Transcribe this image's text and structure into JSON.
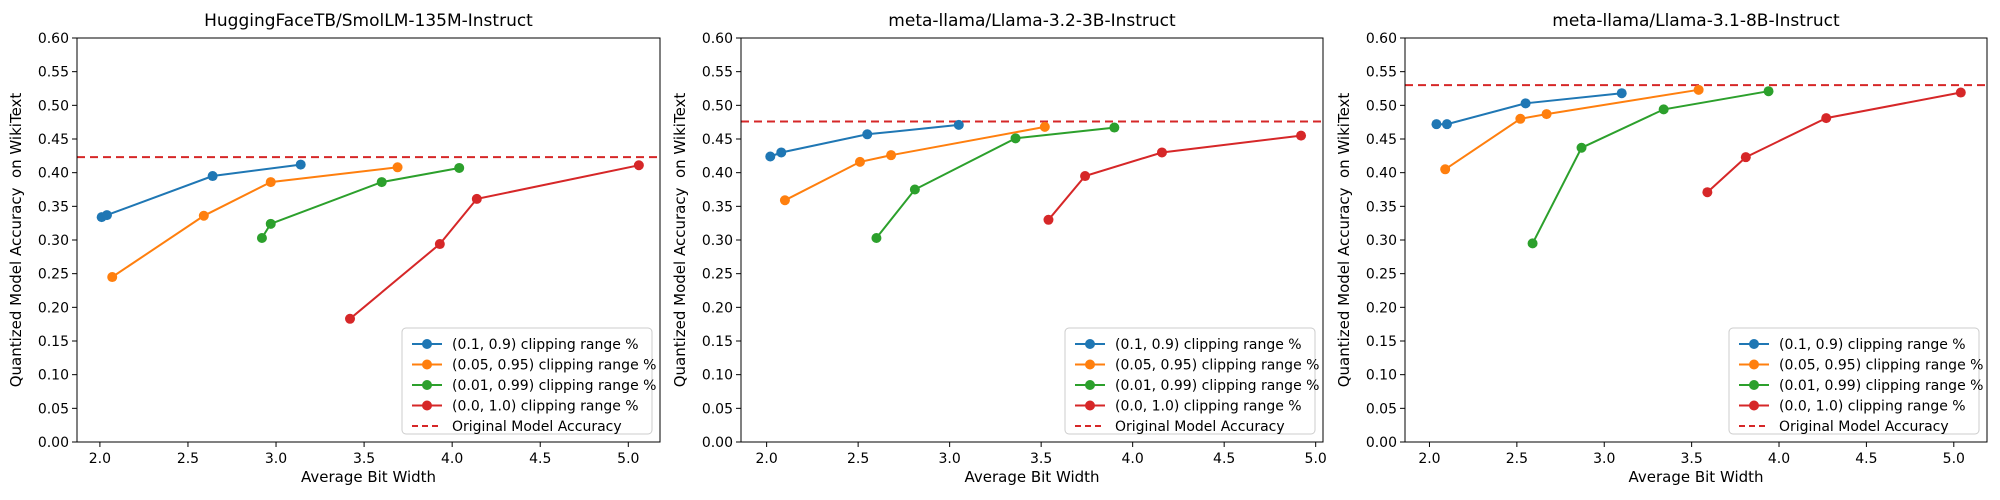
{
  "chart_data": [
    {
      "type": "line",
      "title": "HuggingFaceTB/SmolLM-135M-Instruct",
      "xlabel": "Average Bit Width",
      "ylabel": "Quantized Model Accuracy  on WikiText",
      "xlim": [
        1.87,
        5.18
      ],
      "ylim": [
        0.0,
        0.6
      ],
      "xticks": [
        "2.0",
        "2.5",
        "3.0",
        "3.5",
        "4.0",
        "4.5",
        "5.0"
      ],
      "yticks": [
        "0.00",
        "0.05",
        "0.10",
        "0.15",
        "0.20",
        "0.25",
        "0.30",
        "0.35",
        "0.40",
        "0.45",
        "0.50",
        "0.55",
        "0.60"
      ],
      "legend_position": "lower-right",
      "reference": {
        "name": "Original Model Accuracy",
        "value": 0.423,
        "color": "#d62728"
      },
      "series": [
        {
          "name": "(0.1, 0.9) clipping range %",
          "color": "#1f77b4",
          "x": [
            2.01,
            2.04,
            2.64,
            3.14
          ],
          "y": [
            0.334,
            0.337,
            0.395,
            0.412
          ]
        },
        {
          "name": "(0.05, 0.95) clipping range %",
          "color": "#ff7f0e",
          "x": [
            2.07,
            2.59,
            2.97,
            3.69
          ],
          "y": [
            0.245,
            0.336,
            0.386,
            0.408
          ]
        },
        {
          "name": "(0.01, 0.99) clipping range %",
          "color": "#2ca02c",
          "x": [
            2.92,
            2.97,
            3.6,
            4.04
          ],
          "y": [
            0.303,
            0.324,
            0.386,
            0.407
          ]
        },
        {
          "name": "(0.0, 1.0) clipping range %",
          "color": "#d62728",
          "x": [
            3.42,
            3.93,
            4.14,
            5.06
          ],
          "y": [
            0.183,
            0.294,
            0.361,
            0.411
          ]
        }
      ]
    },
    {
      "type": "line",
      "title": "meta-llama/Llama-3.2-3B-Instruct",
      "xlabel": "Average Bit Width",
      "ylabel": "Quantized Model Accuracy  on WikiText",
      "xlim": [
        1.86,
        5.04
      ],
      "ylim": [
        0.0,
        0.6
      ],
      "xticks": [
        "2.0",
        "2.5",
        "3.0",
        "3.5",
        "4.0",
        "4.5",
        "5.0"
      ],
      "yticks": [
        "0.00",
        "0.05",
        "0.10",
        "0.15",
        "0.20",
        "0.25",
        "0.30",
        "0.35",
        "0.40",
        "0.45",
        "0.50",
        "0.55",
        "0.60"
      ],
      "legend_position": "lower-right",
      "reference": {
        "name": "Original Model Accuracy",
        "value": 0.476,
        "color": "#d62728"
      },
      "series": [
        {
          "name": "(0.1, 0.9) clipping range %",
          "color": "#1f77b4",
          "x": [
            2.02,
            2.08,
            2.55,
            3.05
          ],
          "y": [
            0.424,
            0.43,
            0.457,
            0.471
          ]
        },
        {
          "name": "(0.05, 0.95) clipping range %",
          "color": "#ff7f0e",
          "x": [
            2.1,
            2.51,
            2.68,
            3.52
          ],
          "y": [
            0.359,
            0.416,
            0.426,
            0.468
          ]
        },
        {
          "name": "(0.01, 0.99) clipping range %",
          "color": "#2ca02c",
          "x": [
            2.6,
            2.81,
            3.36,
            3.9
          ],
          "y": [
            0.303,
            0.375,
            0.451,
            0.467
          ]
        },
        {
          "name": "(0.0, 1.0) clipping range %",
          "color": "#d62728",
          "x": [
            3.54,
            3.74,
            4.16,
            4.92
          ],
          "y": [
            0.33,
            0.395,
            0.43,
            0.455
          ]
        }
      ]
    },
    {
      "type": "line",
      "title": "meta-llama/Llama-3.1-8B-Instruct",
      "xlabel": "Average Bit Width",
      "ylabel": "Quantized Model Accuracy  on WikiText",
      "xlim": [
        1.86,
        5.19
      ],
      "ylim": [
        0.0,
        0.6
      ],
      "xticks": [
        "2.0",
        "2.5",
        "3.0",
        "3.5",
        "4.0",
        "4.5",
        "5.0"
      ],
      "yticks": [
        "0.00",
        "0.05",
        "0.10",
        "0.15",
        "0.20",
        "0.25",
        "0.30",
        "0.35",
        "0.40",
        "0.45",
        "0.50",
        "0.55",
        "0.60"
      ],
      "legend_position": "lower-right",
      "reference": {
        "name": "Original Model Accuracy",
        "value": 0.53,
        "color": "#d62728"
      },
      "series": [
        {
          "name": "(0.1, 0.9) clipping range %",
          "color": "#1f77b4",
          "x": [
            2.04,
            2.1,
            2.55,
            3.1
          ],
          "y": [
            0.472,
            0.472,
            0.503,
            0.518
          ]
        },
        {
          "name": "(0.05, 0.95) clipping range %",
          "color": "#ff7f0e",
          "x": [
            2.09,
            2.52,
            2.67,
            3.54
          ],
          "y": [
            0.405,
            0.48,
            0.487,
            0.523
          ]
        },
        {
          "name": "(0.01, 0.99) clipping range %",
          "color": "#2ca02c",
          "x": [
            2.59,
            2.87,
            3.34,
            3.94
          ],
          "y": [
            0.295,
            0.437,
            0.494,
            0.521
          ]
        },
        {
          "name": "(0.0, 1.0) clipping range %",
          "color": "#d62728",
          "x": [
            3.59,
            3.81,
            4.27,
            5.04
          ],
          "y": [
            0.371,
            0.423,
            0.481,
            0.519
          ]
        }
      ]
    }
  ]
}
